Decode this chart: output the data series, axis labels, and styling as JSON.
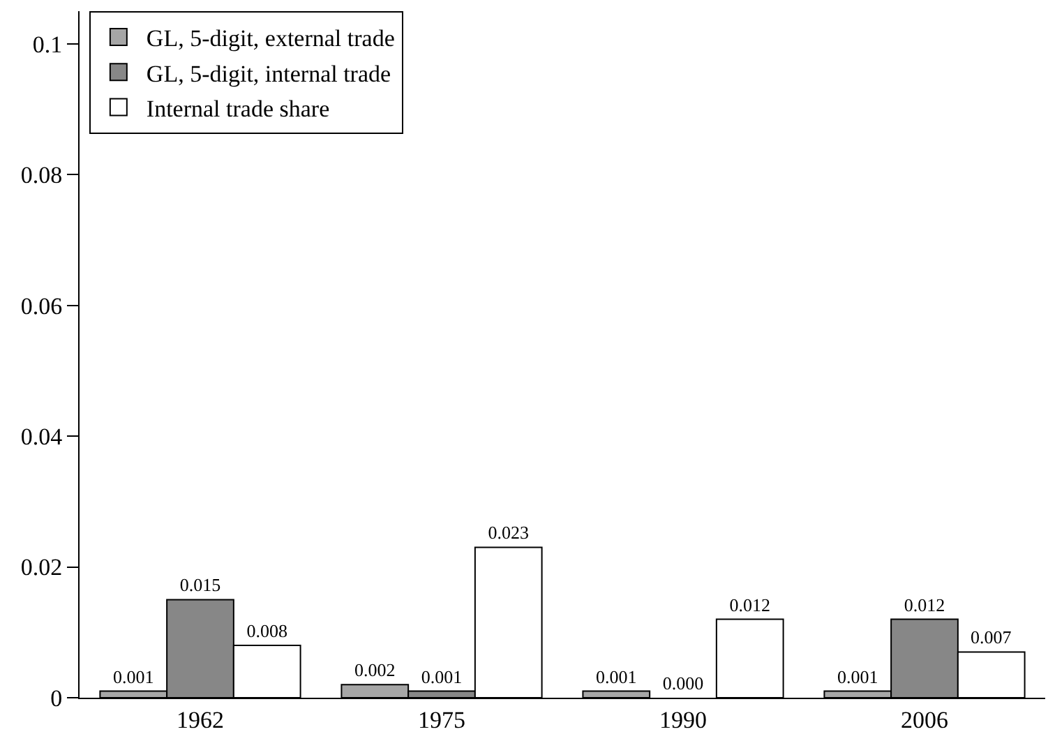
{
  "chart_data": {
    "type": "bar",
    "categories": [
      "1962",
      "1975",
      "1990",
      "2006"
    ],
    "series": [
      {
        "name": "GL, 5-digit, external trade",
        "color": "#a6a6a6",
        "values": [
          0.001,
          0.002,
          0.001,
          0.001
        ],
        "value_labels": [
          "0.001",
          "0.002",
          "0.001",
          "0.001"
        ]
      },
      {
        "name": "GL, 5-digit, internal trade",
        "color": "#878787",
        "values": [
          0.015,
          0.001,
          0.0,
          0.012
        ],
        "value_labels": [
          "0.015",
          "0.001",
          "0.000",
          "0.012"
        ]
      },
      {
        "name": "Internal trade share",
        "color": "#ffffff",
        "values": [
          0.008,
          0.023,
          0.012,
          0.007
        ],
        "value_labels": [
          "0.008",
          "0.023",
          "0.012",
          "0.007"
        ]
      }
    ],
    "ylim": [
      0,
      0.105
    ],
    "yticks": [
      0,
      0.02,
      0.04,
      0.06,
      0.08,
      0.1
    ],
    "grid": false,
    "legend": "top left"
  }
}
